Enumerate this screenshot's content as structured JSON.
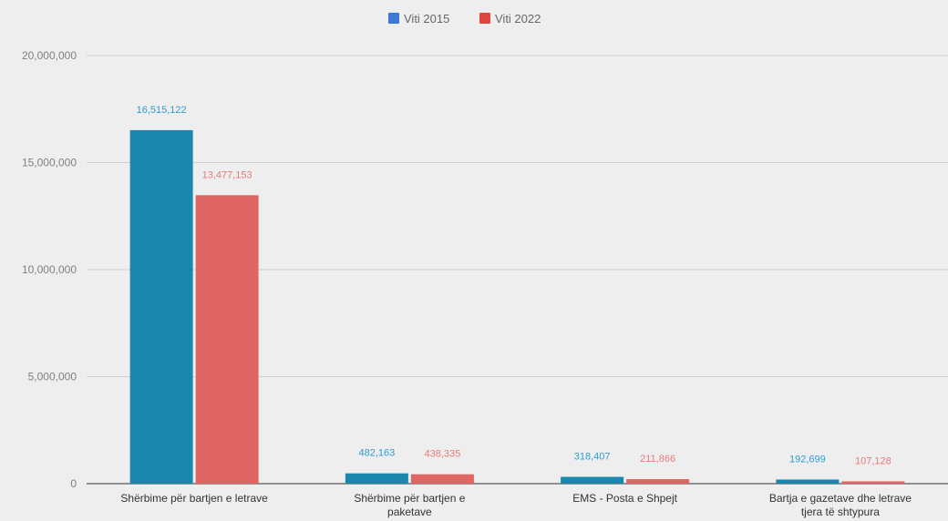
{
  "chart_data": {
    "type": "bar",
    "categories": [
      [
        "Shërbime për bartjen e letrave"
      ],
      [
        "Shërbime për bartjen e",
        "paketave"
      ],
      [
        "EMS - Posta e Shpejt"
      ],
      [
        "Bartja e gazetave dhe letrave",
        "tjera të shtypura"
      ]
    ],
    "series": [
      {
        "name": "Viti 2015",
        "legend_color": "#3c78d8",
        "color": "#1b87ad",
        "label_color": "#2a9ed4",
        "values": [
          16515122,
          482163,
          318407,
          192699
        ],
        "labels": [
          "16,515,122",
          "482,163",
          "318,407",
          "192,699"
        ]
      },
      {
        "name": "Viti 2022",
        "legend_color": "#e0443e",
        "color": "#e06666",
        "label_color": "#e87a7a",
        "values": [
          13477153,
          438335,
          211866,
          107128
        ],
        "labels": [
          "13,477,153",
          "438,335",
          "211,866",
          "107,128"
        ]
      }
    ],
    "ylim": [
      0,
      20000000
    ],
    "yticks": [
      0,
      5000000,
      10000000,
      15000000,
      20000000
    ],
    "ytick_labels": [
      "0",
      "5,000,000",
      "10,000,000",
      "15,000,000",
      "20,000,000"
    ],
    "grid": true,
    "legend_position": "top-center",
    "title": "",
    "xlabel": "",
    "ylabel": ""
  }
}
